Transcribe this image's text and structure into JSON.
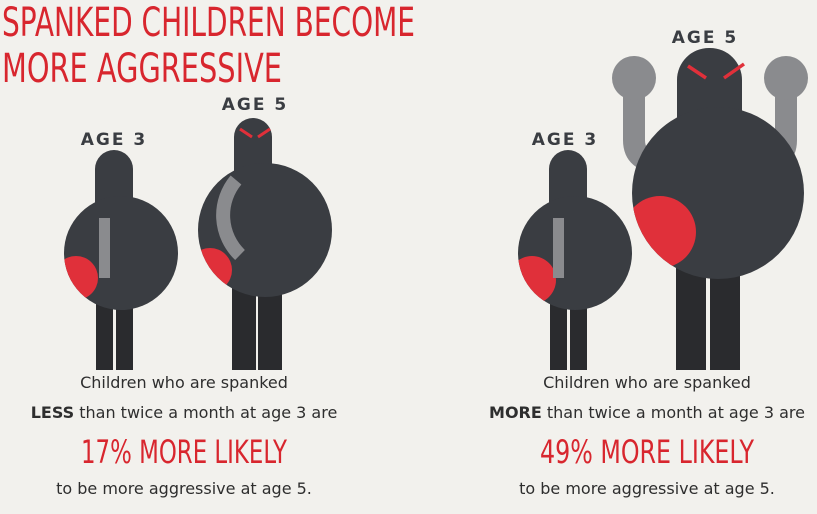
{
  "title": {
    "lines": [
      "SPANKED CHILDREN BECOME",
      "MORE AGGRESSIVE"
    ]
  },
  "panels": [
    {
      "figure_labels": [
        "AGE 3",
        "AGE 5"
      ],
      "line1": "Children who are spanked",
      "emphasis": "LESS",
      "line2": " than twice a month at age 3 are",
      "stat": "17% MORE LIKELY",
      "line3": "to be more aggressive at age 5."
    },
    {
      "figure_labels": [
        "AGE 3",
        "AGE 5"
      ],
      "line1": "Children who are spanked",
      "emphasis": "MORE",
      "line2": " than twice a month at age 3 are",
      "stat": "49% MORE LIKELY",
      "line3": "to be more aggressive at age 5."
    }
  ]
}
